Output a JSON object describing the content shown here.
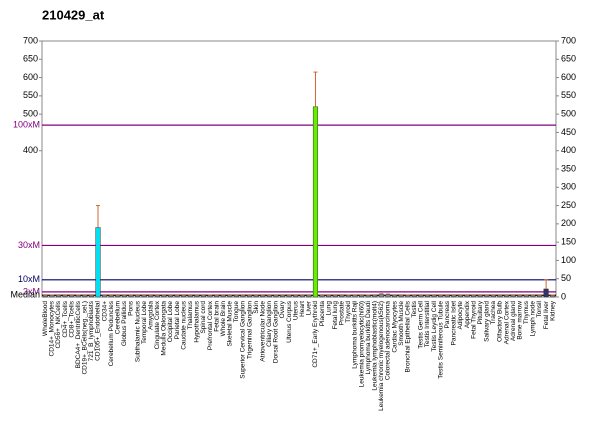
{
  "chart_data": {
    "type": "bar",
    "title": "210429_at",
    "categories": [
      "WholeBlood",
      "CD14+_Monocytes",
      "CD56+_NKCells",
      "CD4+_Tcells",
      "CD8+_Tcells",
      "BDCA4+_DentriticCells",
      "CD19+_BCells(neg._sel.)",
      "721_B_lymphoblasts",
      "CD105+_Endothelial",
      "CD34+",
      "Cerebellum Peduncles",
      "Cerebellum",
      "Globus Pallidus",
      "Pons",
      "Subthalamic Nucleus",
      "Temporal Lobe",
      "Amygdala",
      "Cingulate Cortex",
      "Medulla Oblongata",
      "Occipital Lobe",
      "Parietal Lobe",
      "Caudate nucleus",
      "Thalamus",
      "Hypothalamus",
      "Spinal cord",
      "Prefrontal Cortex",
      "Fetal brain",
      "Whole Brain",
      "Skeletal Muscle",
      "Tongue",
      "Superior Cervical Ganglion",
      "Trigeminal Ganglion",
      "Skin",
      "Atrioventricular Node",
      "Ciliary Ganglion",
      "Dorsal Root Ganglion",
      "Ovary",
      "Uterus Corpus",
      "Uterus",
      "Heart",
      "Liver",
      "CD71+_Early Erythroid",
      "Placenta",
      "Lung",
      "Fetal lung",
      "Prostate",
      "Thyroid",
      "Lymphoma burkitts Raji",
      "Leukemia promyelocytic(hl60)",
      "Lymphoma burkitts Daudi",
      "Leukemia lymphoblastic(molt4)",
      "Leukemia chronic myelogenous(k562)",
      "Colorectal adenocarcinoma",
      "Cardiac Myocytes",
      "Smooth Muscle",
      "Bronchial Epithelial Cells",
      "Testis",
      "Testis Germ Cell",
      "Testis Interstitial",
      "Testis Leydig Cell",
      "Testis Seminiferous Tubule",
      "Pancreas",
      "Pancreatic Islet",
      "Adipocyte",
      "Appendix",
      "Fetal Thyroid",
      "Pituitary",
      "Salivary gland",
      "Trachea",
      "Olfactory Bulb",
      "Adrenal Cortex",
      "Adrenal gland",
      "Bone marrow",
      "Thymus",
      "Lymph node",
      "Tonsil",
      "Fetal liver",
      "Kidney"
    ],
    "values": [
      3,
      4,
      3,
      3,
      3,
      4,
      3,
      3,
      190,
      5,
      3,
      3,
      3,
      3,
      3,
      3,
      3,
      3,
      3,
      3,
      3,
      3,
      3,
      3,
      3,
      4,
      3,
      3,
      3,
      3,
      3,
      3,
      3,
      3,
      3,
      3,
      3,
      3,
      3,
      3,
      3,
      520,
      3,
      3,
      3,
      3,
      4,
      5,
      3,
      4,
      3,
      7,
      6,
      3,
      3,
      4,
      3,
      3,
      3,
      3,
      3,
      3,
      3,
      3,
      3,
      3,
      3,
      3,
      3,
      3,
      3,
      3,
      3,
      3,
      3,
      3,
      22,
      4
    ],
    "errors": [
      1,
      1,
      1,
      1,
      1,
      1,
      1,
      1,
      60,
      1,
      1,
      1,
      1,
      1,
      1,
      1,
      1,
      1,
      1,
      1,
      1,
      1,
      1,
      1,
      1,
      1,
      1,
      1,
      1,
      1,
      1,
      1,
      1,
      1,
      1,
      1,
      1,
      1,
      1,
      1,
      1,
      95,
      1,
      1,
      1,
      1,
      1,
      1,
      1,
      1,
      1,
      2,
      2,
      1,
      1,
      1,
      1,
      1,
      1,
      1,
      1,
      1,
      1,
      1,
      1,
      1,
      1,
      1,
      1,
      1,
      1,
      1,
      1,
      1,
      1,
      1,
      25,
      1
    ],
    "bar_color": "#7a8ea8",
    "highlight_colors": {
      "8": "#00e0f0",
      "41": "#66ee00",
      "76": "#333366"
    },
    "error_color": "#cc6633",
    "ylim": [
      0,
      700
    ],
    "yticks": [
      400,
      500,
      550,
      600,
      650,
      700
    ],
    "y2lim": [
      0,
      700
    ],
    "y2ticks": [
      0,
      50,
      100,
      150,
      200,
      250,
      300,
      350,
      400,
      450,
      500,
      550,
      600,
      650,
      700
    ],
    "reference_lines": [
      {
        "label": "100xM",
        "value": 470,
        "color": "#800080"
      },
      {
        "label": "30xM",
        "value": 141,
        "color": "#800080"
      },
      {
        "label": "10xM",
        "value": 47,
        "color": "#000066"
      },
      {
        "label": "3xM",
        "value": 14,
        "color": "#800080"
      },
      {
        "label": "Median",
        "value": 4.7,
        "color": "#000000"
      }
    ]
  }
}
